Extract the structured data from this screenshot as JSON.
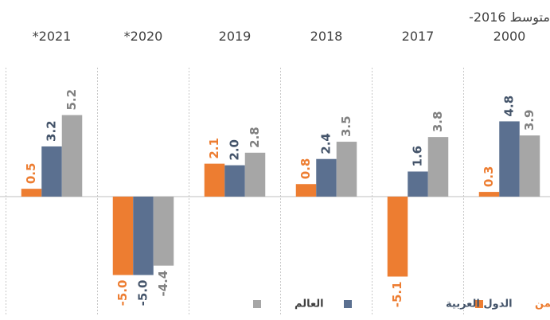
{
  "chart_data": {
    "type": "bar",
    "categories": [
      "متوسط 2016-2000",
      "2017",
      "2018",
      "2019",
      "2020*",
      "2021*"
    ],
    "series": [
      {
        "name": "اليمن",
        "color": "#ED7D31",
        "label_color": "#ED7D31",
        "values": [
          0.3,
          -5.1,
          0.8,
          2.1,
          -5.0,
          0.5
        ],
        "value_labels": [
          "0.3",
          "-5.1",
          "0.8",
          "2.1",
          "-5.0",
          "0.5"
        ]
      },
      {
        "name": "الدول العربية",
        "color": "#5B7090",
        "label_color": "#44546A",
        "values": [
          4.8,
          1.6,
          2.4,
          2.0,
          -5.0,
          3.2
        ],
        "value_labels": [
          "4.8",
          "1.6",
          "2.4",
          "2.0",
          "-5.0",
          "3.2"
        ]
      },
      {
        "name": "العالم",
        "color": "#A6A6A6",
        "label_color": "#808080",
        "values": [
          3.9,
          3.8,
          3.5,
          2.8,
          -4.4,
          5.2
        ],
        "value_labels": [
          "3.9",
          "3.8",
          "3.5",
          "2.8",
          "-4.4",
          "5.2"
        ]
      }
    ]
  }
}
